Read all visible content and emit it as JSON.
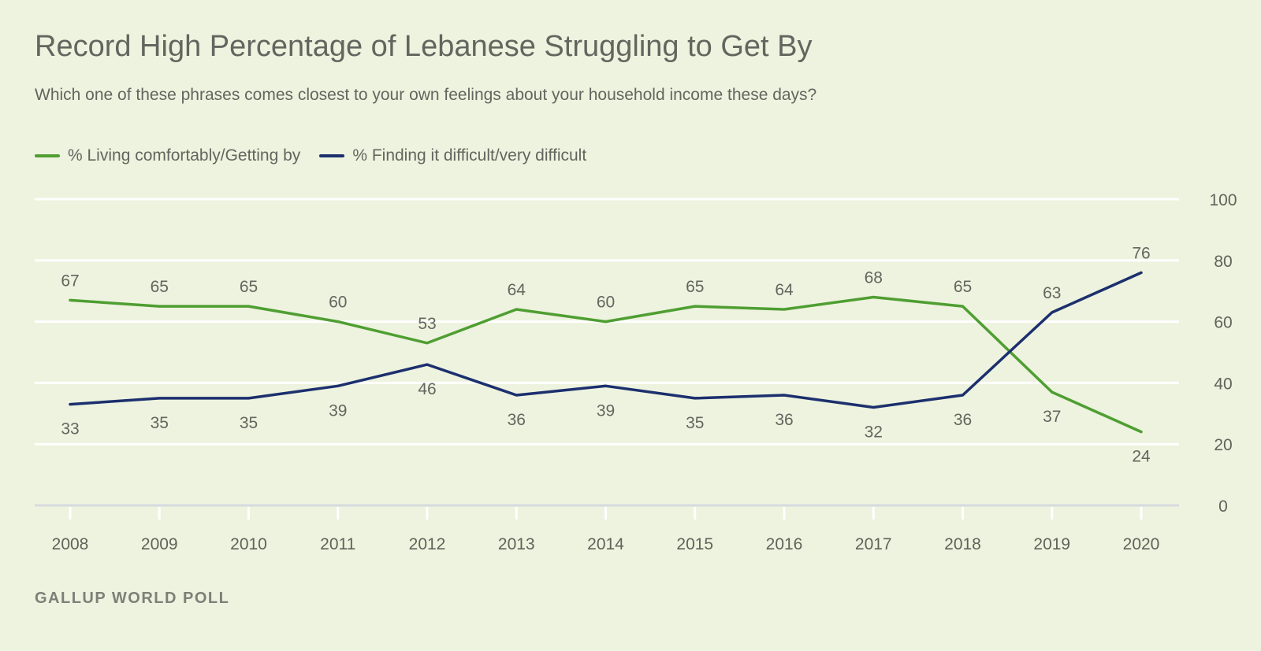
{
  "title": "Record High Percentage of Lebanese Struggling to Get By",
  "subtitle": "Which one of these phrases comes closest to your own feelings about your household income these days?",
  "source": "GALLUP WORLD POLL",
  "colors": {
    "series_green": "#4f9e32",
    "series_navy": "#1c2f6e",
    "grid": "#ffffff",
    "background": "#edf3de"
  },
  "chart_data": {
    "type": "line",
    "x": [
      "2008",
      "2009",
      "2010",
      "2011",
      "2012",
      "2013",
      "2014",
      "2015",
      "2016",
      "2017",
      "2018",
      "2019",
      "2020"
    ],
    "ylim": [
      0,
      100
    ],
    "yticks": [
      0,
      20,
      40,
      60,
      80,
      100
    ],
    "y_axis_side": "right",
    "grid": true,
    "legend_position": "top-left",
    "series": [
      {
        "name": "% Living comfortably/Getting by",
        "color": "#4f9e32",
        "values": [
          67,
          65,
          65,
          60,
          53,
          64,
          60,
          65,
          64,
          68,
          65,
          37,
          24
        ]
      },
      {
        "name": "% Finding it difficult/very difficult",
        "color": "#1c2f6e",
        "values": [
          33,
          35,
          35,
          39,
          46,
          36,
          39,
          35,
          36,
          32,
          36,
          63,
          76
        ]
      }
    ]
  }
}
